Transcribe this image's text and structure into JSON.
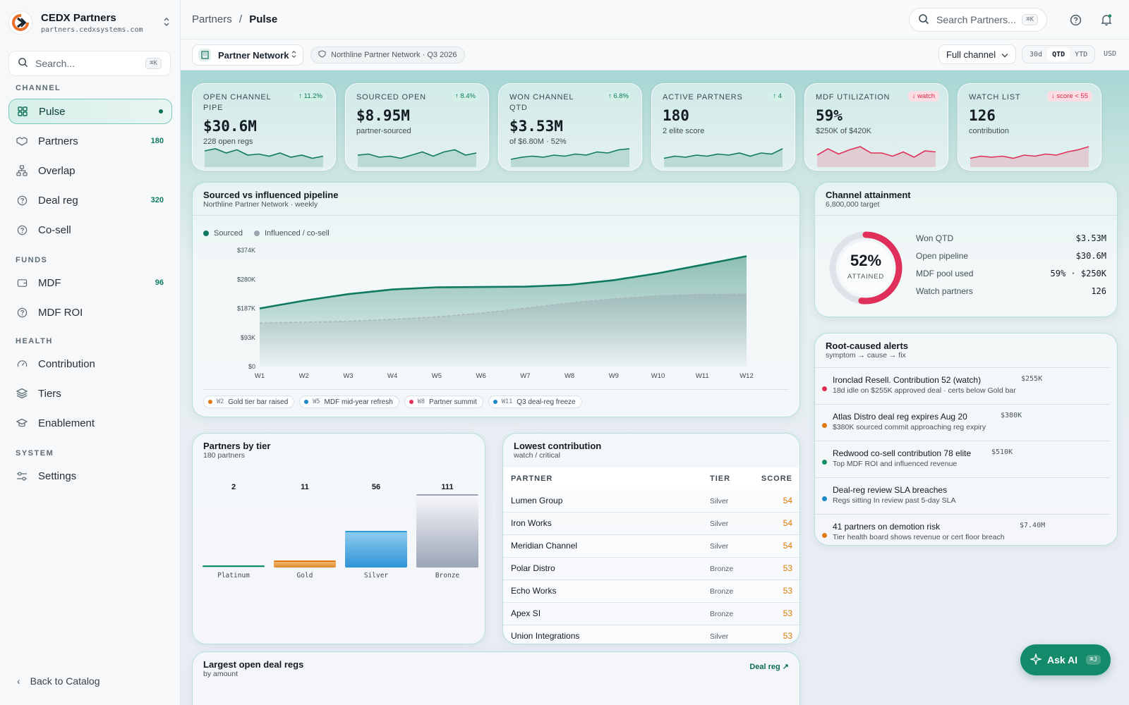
{
  "brand": {
    "name": "CEDX Partners",
    "host": "partners.cedxsystems.com"
  },
  "sidebar": {
    "search_placeholder": "Search...",
    "search_kbd": "⌘K",
    "sections": {
      "channel": "CHANNEL",
      "funds": "FUNDS",
      "health": "HEALTH",
      "system": "SYSTEM"
    },
    "items": [
      {
        "label": "Pulse",
        "icon": "grid-icon",
        "active": true
      },
      {
        "label": "Partners",
        "icon": "handshake-icon",
        "count": "180"
      },
      {
        "label": "Overlap",
        "icon": "hierarchy-icon"
      },
      {
        "label": "Deal reg",
        "icon": "help-circle-icon",
        "count": "320"
      },
      {
        "label": "Co-sell",
        "icon": "help-circle-icon"
      },
      {
        "label": "MDF",
        "icon": "wallet-icon",
        "count": "96"
      },
      {
        "label": "MDF ROI",
        "icon": "help-circle-icon"
      },
      {
        "label": "Contribution",
        "icon": "gauge-icon"
      },
      {
        "label": "Tiers",
        "icon": "layers-icon"
      },
      {
        "label": "Enablement",
        "icon": "graduation-cap-icon"
      },
      {
        "label": "Settings",
        "icon": "sliders-icon"
      }
    ],
    "back": "Back to Catalog"
  },
  "topbar": {
    "crumb_parent": "Partners",
    "crumb_sep": "/",
    "crumb_current": "Pulse",
    "search_placeholder": "Search Partners...",
    "search_kbd": "⌘K"
  },
  "subbar": {
    "network": "Partner Network",
    "context": "Northline Partner Network · Q3 2026",
    "channel": "Full channel",
    "ranges": [
      "30d",
      "QTD",
      "YTD"
    ],
    "active_range": "QTD",
    "currency": "USD"
  },
  "kpis": [
    {
      "label": "OPEN CHANNEL PIPE",
      "delta": "↑ 11.2%",
      "neg": false,
      "value": "$30.6M",
      "sub": "228 open regs",
      "spark": [
        14,
        16,
        12,
        15,
        10,
        11,
        9,
        12,
        8,
        10,
        7,
        9
      ],
      "color": "#0f7a60"
    },
    {
      "label": "SOURCED OPEN",
      "delta": "↑ 8.4%",
      "neg": false,
      "value": "$8.95M",
      "sub": "partner-sourced",
      "spark": [
        10,
        11,
        8,
        9,
        7,
        10,
        13,
        9,
        13,
        15,
        10,
        12
      ],
      "color": "#0f7a60"
    },
    {
      "label": "WON CHANNEL QTD",
      "delta": "↑ 6.8%",
      "neg": false,
      "value": "$3.53M",
      "sub": "of $6.80M · 52%",
      "spark": [
        6,
        8,
        9,
        8,
        10,
        9,
        11,
        10,
        13,
        12,
        15,
        16
      ],
      "color": "#0f7a60"
    },
    {
      "label": "ACTIVE PARTNERS",
      "delta": "↑ 4",
      "neg": false,
      "value": "180",
      "sub": "2 elite score",
      "spark": [
        7,
        9,
        8,
        10,
        9,
        11,
        10,
        12,
        9,
        12,
        11,
        16
      ],
      "color": "#0f7a60"
    },
    {
      "label": "MDF UTILIZATION",
      "delta": "↓ watch",
      "neg": true,
      "value": "59%",
      "sub": "$250K of $420K",
      "spark": [
        10,
        16,
        11,
        15,
        18,
        12,
        12,
        9,
        13,
        8,
        14,
        13
      ],
      "color": "#e0305a"
    },
    {
      "label": "WATCH LIST",
      "delta": "↓ score < 55",
      "neg": true,
      "value": "126",
      "sub": "contribution",
      "spark": [
        7,
        9,
        8,
        9,
        7,
        10,
        9,
        11,
        10,
        13,
        15,
        18
      ],
      "color": "#e0305a"
    }
  ],
  "pipeline": {
    "title": "Sourced vs influenced pipeline",
    "subtitle": "Northline Partner Network · weekly",
    "events": [
      {
        "week": "W2",
        "label": "Gold tier bar raised",
        "color": "#e07a10"
      },
      {
        "week": "W5",
        "label": "MDF mid-year refresh",
        "color": "#1e88c8"
      },
      {
        "week": "W8",
        "label": "Partner summit",
        "color": "#e0305a"
      },
      {
        "week": "W11",
        "label": "Q3 deal-reg freeze",
        "color": "#1e88c8"
      }
    ]
  },
  "chart_data": {
    "type": "area",
    "legend": "top-left",
    "x": [
      "W1",
      "W2",
      "W3",
      "W4",
      "W5",
      "W6",
      "W7",
      "W8",
      "W9",
      "W10",
      "W11",
      "W12"
    ],
    "ylim": [
      0,
      374
    ],
    "y_ticks": [
      "$0",
      "$93K",
      "$187K",
      "$280K",
      "$374K"
    ],
    "series": [
      {
        "name": "Sourced",
        "values": [
          187,
          212,
          233,
          248,
          255,
          256,
          257,
          263,
          278,
          300,
          327,
          355
        ],
        "color": "#0f7a60"
      },
      {
        "name": "Influenced / co-sell",
        "values": [
          140,
          143,
          146,
          152,
          160,
          172,
          188,
          205,
          218,
          228,
          233,
          233
        ],
        "color": "#9aa7b1"
      }
    ]
  },
  "attainment": {
    "title": "Channel attainment",
    "subtitle": "6,800,000 target",
    "percent": "52%",
    "percent_value": 52,
    "caption": "ATTAINED",
    "rows": [
      {
        "label": "Won QTD",
        "value": "$3.53M"
      },
      {
        "label": "Open pipeline",
        "value": "$30.6M"
      },
      {
        "label": "MDF pool used",
        "value": "59% · $250K"
      },
      {
        "label": "Watch partners",
        "value": "126"
      }
    ]
  },
  "alerts": {
    "title": "Root-caused alerts",
    "subtitle": "symptom → cause → fix",
    "items": [
      {
        "title": "Ironclad Resell. Contribution 52 (watch)",
        "amount": "$255K",
        "sub": "18d idle on $255K approved deal · certs below Gold bar",
        "color": "#e0305a"
      },
      {
        "title": "Atlas Distro deal reg expires Aug 20",
        "amount": "$380K",
        "sub": "$380K sourced commit approaching reg expiry",
        "color": "#e07a10"
      },
      {
        "title": "Redwood co-sell contribution 78 elite",
        "amount": "$510K",
        "sub": "Top MDF ROI and influenced revenue",
        "color": "#14905e"
      },
      {
        "title": "Deal-reg review SLA breaches",
        "amount": "",
        "sub": "Regs sitting In review past 5-day SLA",
        "color": "#1e88c8"
      },
      {
        "title": "41 partners on demotion risk",
        "amount": "$7.40M",
        "sub": "Tier health board shows revenue or cert floor breach",
        "color": "#e07a10"
      }
    ]
  },
  "tiers": {
    "title": "Partners by tier",
    "subtitle": "180 partners",
    "items": [
      {
        "name": "Platinum",
        "count": 2,
        "count_label": "2"
      },
      {
        "name": "Gold",
        "count": 11,
        "count_label": "11"
      },
      {
        "name": "Silver",
        "count": 56,
        "count_label": "56"
      },
      {
        "name": "Bronze",
        "count": 111,
        "count_label": "111"
      }
    ]
  },
  "lowest": {
    "title": "Lowest contribution",
    "subtitle": "watch / critical",
    "headers": {
      "partner": "PARTNER",
      "tier": "TIER",
      "score": "SCORE"
    },
    "rows": [
      {
        "partner": "Lumen Group",
        "tier": "Silver",
        "score": "54"
      },
      {
        "partner": "Iron Works",
        "tier": "Silver",
        "score": "54"
      },
      {
        "partner": "Meridian Channel",
        "tier": "Silver",
        "score": "54"
      },
      {
        "partner": "Polar Distro",
        "tier": "Bronze",
        "score": "53"
      },
      {
        "partner": "Echo Works",
        "tier": "Bronze",
        "score": "53"
      },
      {
        "partner": "Apex SI",
        "tier": "Bronze",
        "score": "53"
      },
      {
        "partner": "Union Integrations",
        "tier": "Silver",
        "score": "53"
      }
    ]
  },
  "largest": {
    "title": "Largest open deal regs",
    "subtitle": "by amount",
    "link": "Deal reg ↗"
  },
  "askai": {
    "label": "Ask AI",
    "kbd": "⌘J"
  }
}
